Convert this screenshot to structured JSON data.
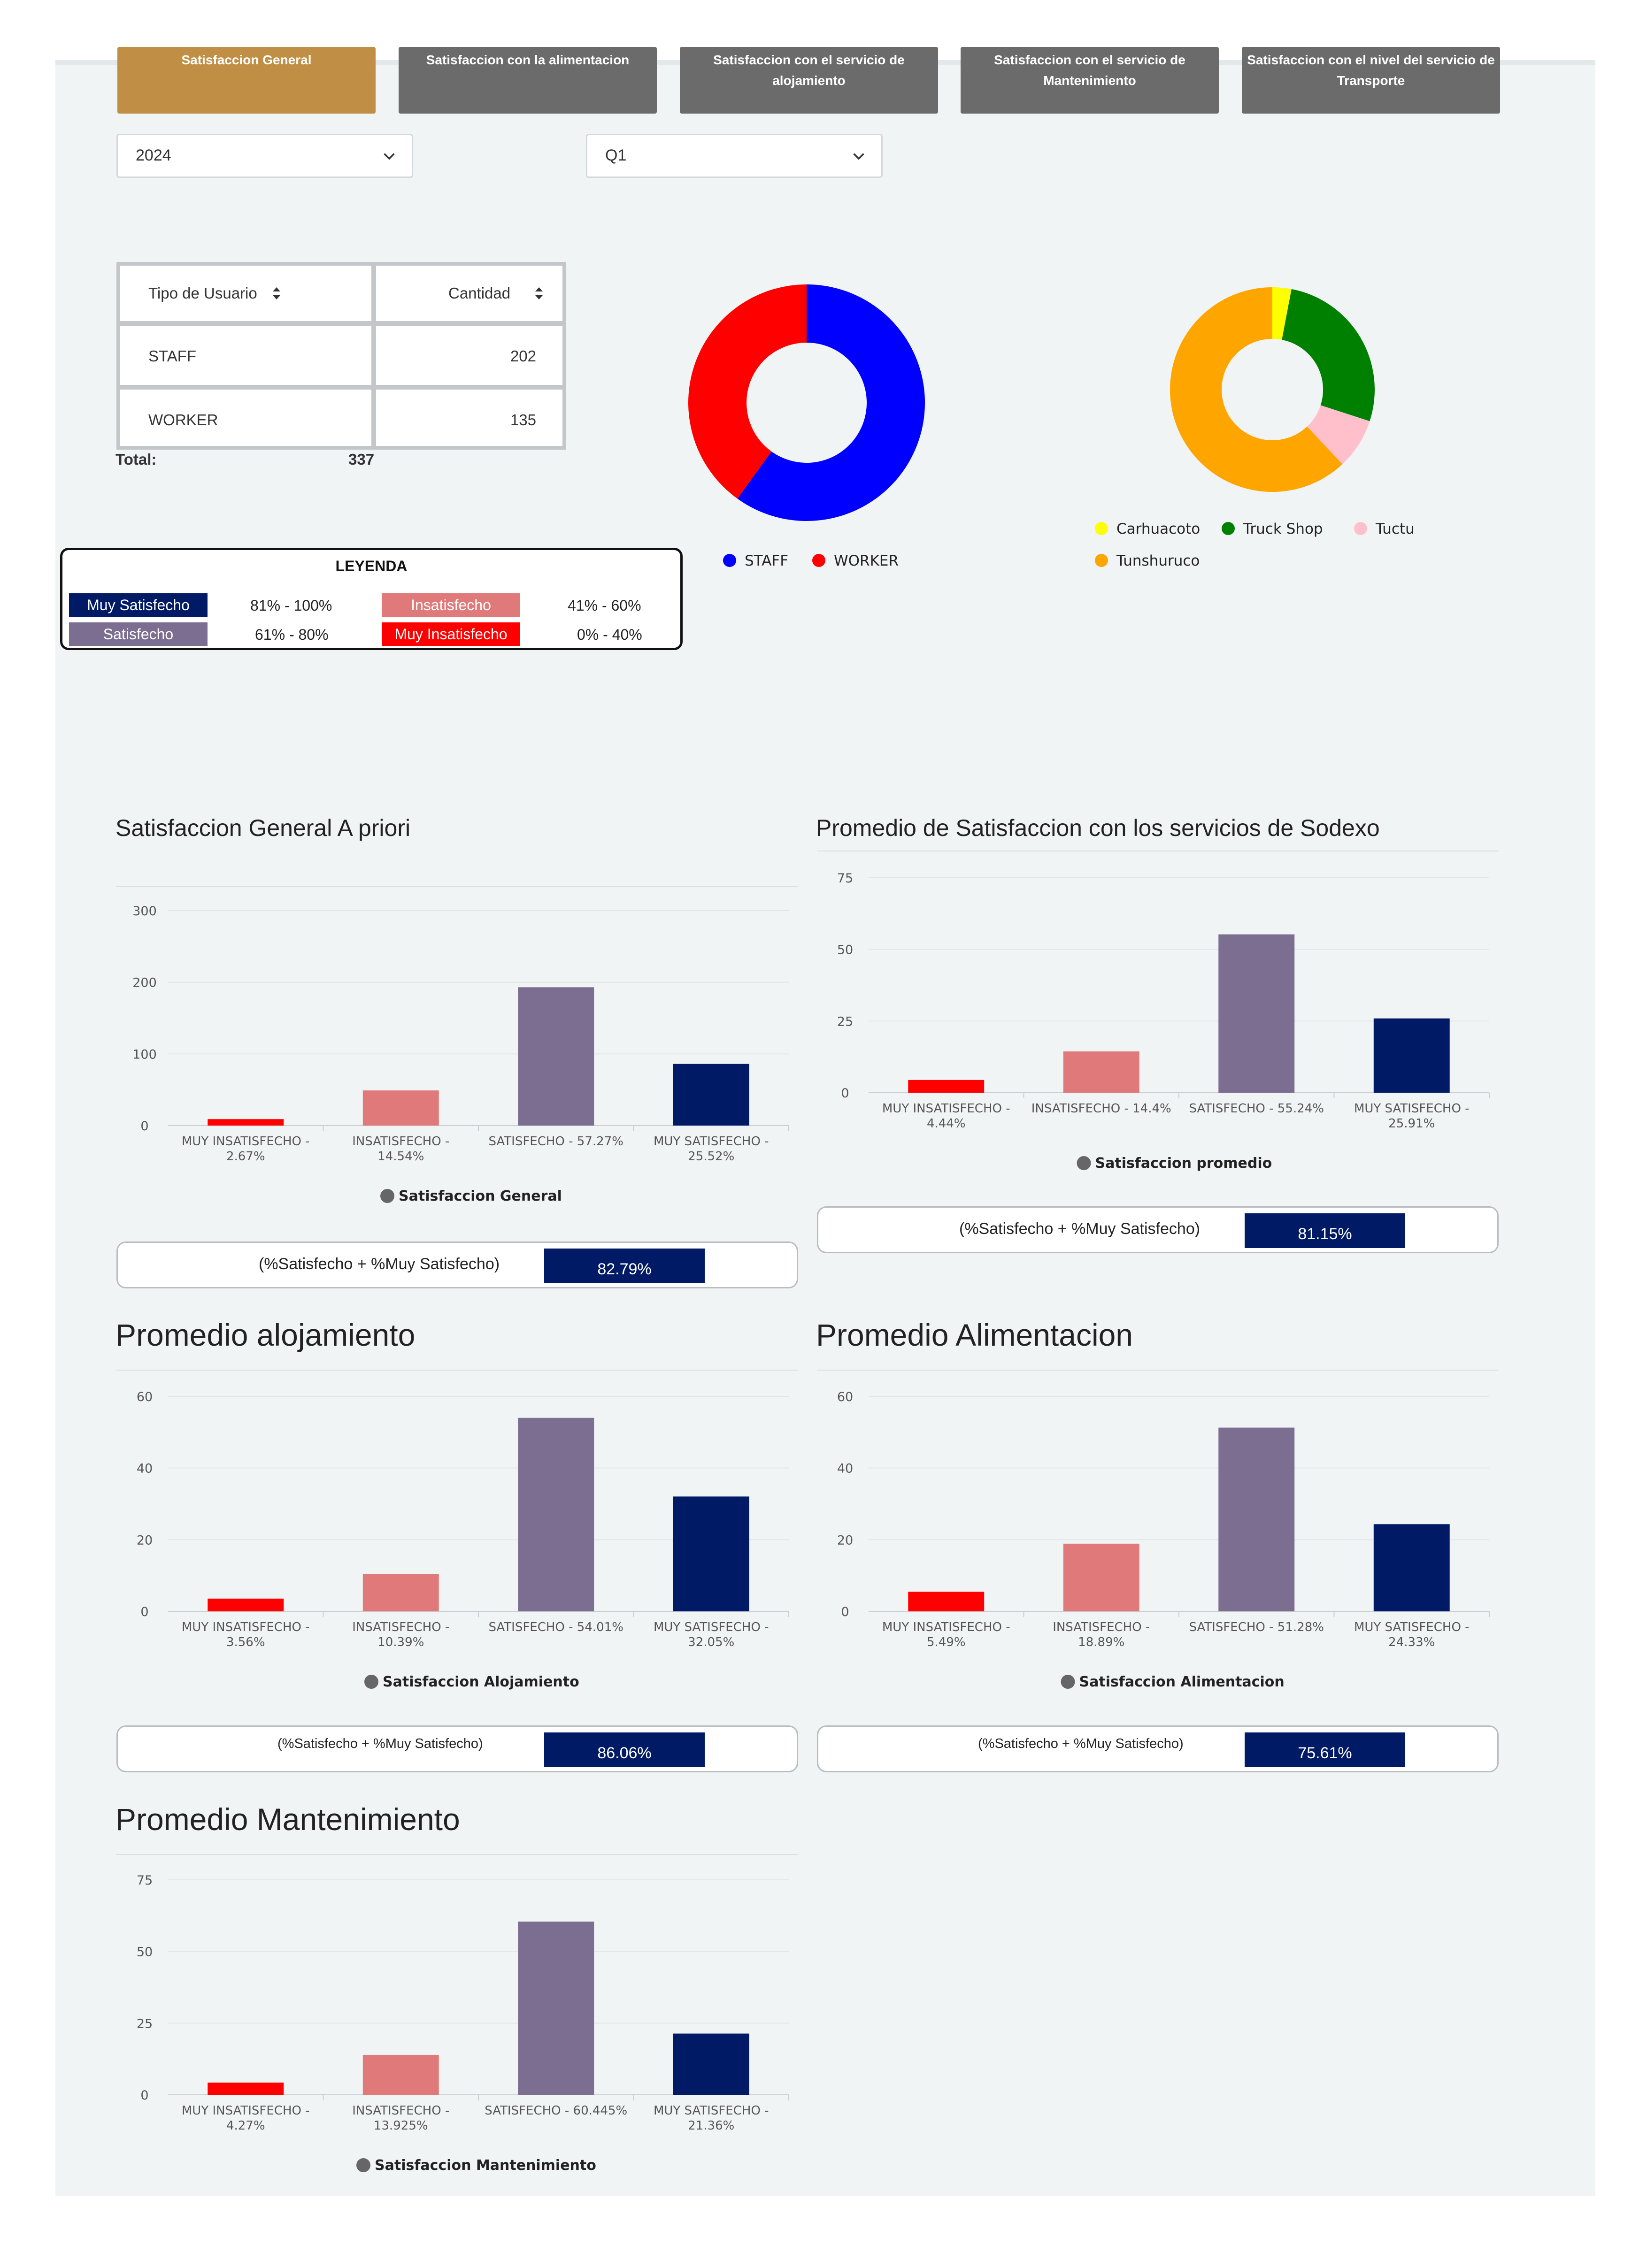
{
  "tabs": [
    {
      "label_1": "Satisfaccion General",
      "label_2": "",
      "active": true
    },
    {
      "label_1": "Satisfaccion con la alimentacion",
      "label_2": "",
      "active": false
    },
    {
      "label_1": "Satisfaccion con el servicio de",
      "label_2": "alojamiento",
      "active": false
    },
    {
      "label_1": "Satisfaccion con el servicio de",
      "label_2": "Mantenimiento",
      "active": false
    },
    {
      "label_1": "Satisfaccion con el nivel del servicio de",
      "label_2": "Transporte",
      "active": false
    }
  ],
  "filters": {
    "year": "2024",
    "quarter": "Q1"
  },
  "user_table": {
    "headers": [
      "Tipo de Usuario",
      "Cantidad"
    ],
    "rows": [
      {
        "type": "STAFF",
        "count": "202"
      },
      {
        "type": "WORKER",
        "count": "135"
      }
    ],
    "total_label": "Total:",
    "total_value": "337"
  },
  "legend_box": {
    "title": "LEYENDA",
    "items": [
      {
        "label": "Muy Satisfecho",
        "range": "81% - 100%",
        "color": "#001a66"
      },
      {
        "label": "Insatisfecho",
        "range": "41% - 60%",
        "color": "#e07a7a"
      },
      {
        "label": "Satisfecho",
        "range": "61% - 80%",
        "color": "#7b6e90"
      },
      {
        "label": "Muy Insatisfecho",
        "range": "0% - 40%",
        "color": "#ff0000"
      }
    ]
  },
  "sections": {
    "general": {
      "title": "Satisfaccion General A priori",
      "pct_label": "(%Satisfecho + %Muy Satisfecho)",
      "pct_value": "82.79%"
    },
    "sodexo": {
      "title": "Promedio de Satisfaccion con los servicios de Sodexo",
      "pct_label": "(%Satisfecho + %Muy Satisfecho)",
      "pct_value": "81.15%"
    },
    "alojamiento": {
      "title": "Promedio alojamiento",
      "pct_label": "(%Satisfecho + %Muy Satisfecho)",
      "pct_value": "86.06%"
    },
    "alimentacion": {
      "title": "Promedio Alimentacion",
      "pct_label": "(%Satisfecho + %Muy Satisfecho)",
      "pct_value": "75.61%"
    },
    "mantenimiento": {
      "title": "Promedio Mantenimiento"
    }
  },
  "chart_data": [
    {
      "id": "donut-users",
      "type": "pie",
      "donut": true,
      "labels": [
        "STAFF",
        "WORKER"
      ],
      "values": [
        202,
        135
      ],
      "colors": [
        "#0000ff",
        "#ff0000"
      ],
      "legend": "bottom"
    },
    {
      "id": "donut-sites",
      "type": "pie",
      "donut": true,
      "labels": [
        "Carhuacoto",
        "Truck Shop",
        "Tuctu",
        "Tunshuruco"
      ],
      "values": [
        3,
        27,
        8,
        62
      ],
      "colors": [
        "#ffff00",
        "#008000",
        "#ffc0cb",
        "#ffa500"
      ],
      "legend": "bottom"
    },
    {
      "id": "bar-general",
      "type": "bar",
      "categories": [
        [
          "MUY INSATISFECHO -",
          "2.67%"
        ],
        [
          "INSATISFECHO -",
          "14.54%"
        ],
        [
          "SATISFECHO - 57.27%"
        ],
        [
          "MUY SATISFECHO -",
          "25.52%"
        ]
      ],
      "values": [
        9,
        49,
        193,
        86
      ],
      "colors": [
        "#ff0000",
        "#e07a7a",
        "#7b6e90",
        "#001a66"
      ],
      "ylim": [
        0,
        300
      ],
      "yticks": [
        0,
        100,
        200,
        300
      ],
      "series_name": "Satisfaccion General"
    },
    {
      "id": "bar-sodexo",
      "type": "bar",
      "categories": [
        [
          "MUY INSATISFECHO -",
          "4.44%"
        ],
        [
          "INSATISFECHO - 14.4%"
        ],
        [
          "SATISFECHO - 55.24%"
        ],
        [
          "MUY SATISFECHO -",
          "25.91%"
        ]
      ],
      "values": [
        4.44,
        14.4,
        55.24,
        25.91
      ],
      "colors": [
        "#ff0000",
        "#e07a7a",
        "#7b6e90",
        "#001a66"
      ],
      "ylim": [
        0,
        75
      ],
      "yticks": [
        0,
        25,
        50,
        75
      ],
      "series_name": "Satisfaccion promedio"
    },
    {
      "id": "bar-alojamiento",
      "type": "bar",
      "categories": [
        [
          "MUY INSATISFECHO -",
          "3.56%"
        ],
        [
          "INSATISFECHO -",
          "10.39%"
        ],
        [
          "SATISFECHO - 54.01%"
        ],
        [
          "MUY SATISFECHO -",
          "32.05%"
        ]
      ],
      "values": [
        3.56,
        10.39,
        54.01,
        32.05
      ],
      "colors": [
        "#ff0000",
        "#e07a7a",
        "#7b6e90",
        "#001a66"
      ],
      "ylim": [
        0,
        60
      ],
      "yticks": [
        0,
        20,
        40,
        60
      ],
      "series_name": "Satisfaccion Alojamiento"
    },
    {
      "id": "bar-alimentacion",
      "type": "bar",
      "categories": [
        [
          "MUY INSATISFECHO -",
          "5.49%"
        ],
        [
          "INSATISFECHO -",
          "18.89%"
        ],
        [
          "SATISFECHO - 51.28%"
        ],
        [
          "MUY SATISFECHO -",
          "24.33%"
        ]
      ],
      "values": [
        5.49,
        18.89,
        51.28,
        24.33
      ],
      "colors": [
        "#ff0000",
        "#e07a7a",
        "#7b6e90",
        "#001a66"
      ],
      "ylim": [
        0,
        60
      ],
      "yticks": [
        0,
        20,
        40,
        60
      ],
      "series_name": "Satisfaccion Alimentacion"
    },
    {
      "id": "bar-mantenimiento",
      "type": "bar",
      "categories": [
        [
          "MUY INSATISFECHO -",
          "4.27%"
        ],
        [
          "INSATISFECHO -",
          "13.925%"
        ],
        [
          "SATISFECHO - 60.445%"
        ],
        [
          "MUY SATISFECHO -",
          "21.36%"
        ]
      ],
      "values": [
        4.27,
        13.925,
        60.445,
        21.36
      ],
      "colors": [
        "#ff0000",
        "#e07a7a",
        "#7b6e90",
        "#001a66"
      ],
      "ylim": [
        0,
        75
      ],
      "yticks": [
        0,
        25,
        50,
        75
      ],
      "series_name": "Satisfaccion Mantenimiento"
    }
  ]
}
